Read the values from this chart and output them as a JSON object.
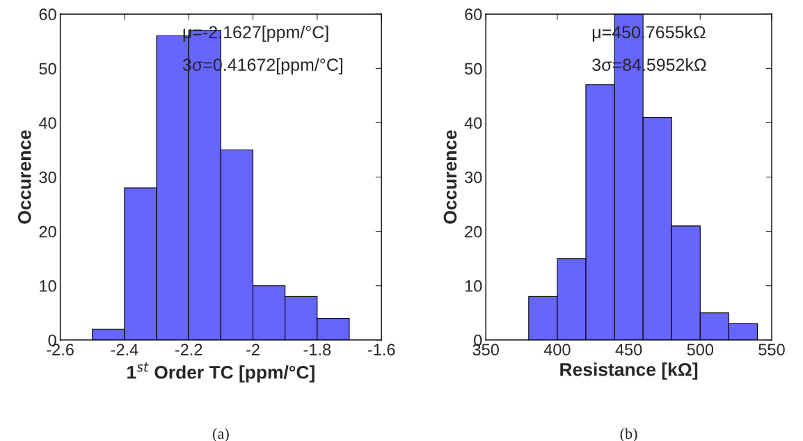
{
  "chart_data": [
    {
      "type": "histogram",
      "bins": [
        -2.5,
        -2.4,
        -2.3,
        -2.2,
        -2.1,
        -2.0,
        -1.9,
        -1.8,
        -1.7
      ],
      "values": [
        2,
        28,
        56,
        57,
        35,
        10,
        8,
        4
      ],
      "color": "#6666ff",
      "xlabel": "1$^{st}$ Order TC [ppm/°C]",
      "ylabel": "Occurence",
      "xlim": [
        -2.6,
        -1.6
      ],
      "xticks": [
        -2.6,
        -2.4,
        -2.2,
        -2,
        -1.8,
        -1.6
      ],
      "ylim": [
        0,
        60
      ],
      "yticks": [
        0,
        10,
        20,
        30,
        40,
        50,
        60
      ],
      "grid": false,
      "annotations": [
        "μ=-2.1627[ppm/°C]",
        "3σ=0.41672[ppm/°C]",
        "(a)"
      ]
    },
    {
      "type": "histogram",
      "bins": [
        380,
        400,
        420,
        440,
        460,
        480,
        500,
        520,
        540
      ],
      "values": [
        8,
        15,
        47,
        60,
        41,
        21,
        5,
        3
      ],
      "color": "#6666ff",
      "xlabel": "Resistance [kΩ]",
      "ylabel": "Occurence",
      "xlim": [
        350,
        550
      ],
      "xticks": [
        350,
        400,
        450,
        500,
        550
      ],
      "ylim": [
        0,
        60
      ],
      "yticks": [
        0,
        10,
        20,
        30,
        40,
        50,
        60
      ],
      "grid": false,
      "annotations": [
        "μ=450.7655kΩ",
        "3σ=84.5952kΩ",
        "(b)"
      ]
    }
  ]
}
